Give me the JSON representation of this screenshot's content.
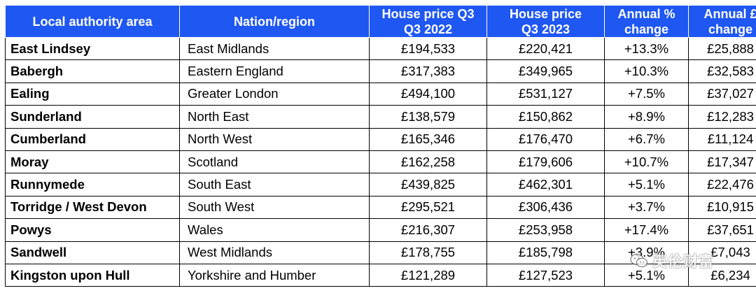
{
  "table": {
    "headers": [
      "Local authority area",
      "Nation/region",
      "House price Q3 Q3 2022",
      "House price Q3 2023",
      "Annual % change",
      "Annual £ change"
    ],
    "header_lines": [
      [
        "Local authority area"
      ],
      [
        "Nation/region"
      ],
      [
        "House price Q3",
        "Q3 2022"
      ],
      [
        "House price",
        "Q3 2023"
      ],
      [
        "Annual %",
        "change"
      ],
      [
        "Annual £",
        "change"
      ]
    ],
    "rows": [
      [
        "East Lindsey",
        "East Midlands",
        "£194,533",
        "£220,421",
        "+13.3%",
        "£25,888"
      ],
      [
        "Babergh",
        "Eastern England",
        "£317,383",
        "£349,965",
        "+10.3%",
        "£32,583"
      ],
      [
        "Ealing",
        "Greater London",
        "£494,100",
        "£531,127",
        "+7.5%",
        "£37,027"
      ],
      [
        "Sunderland",
        "North East",
        "£138,579",
        "£150,862",
        "+8.9%",
        "£12,283"
      ],
      [
        "Cumberland",
        "North West",
        "£165,346",
        "£176,470",
        "+6.7%",
        "£11,124"
      ],
      [
        "Moray",
        "Scotland",
        "£162,258",
        "£179,606",
        "+10.7%",
        "£17,347"
      ],
      [
        "Runnymede",
        "South East",
        "£439,825",
        "£462,301",
        "+5.1%",
        "£22,476"
      ],
      [
        "Torridge / West Devon",
        "South West",
        "£295,521",
        "£306,436",
        "+3.7%",
        "£10,915"
      ],
      [
        "Powys",
        "Wales",
        "£216,307",
        "£253,958",
        "+17.4%",
        "£37,651"
      ],
      [
        "Sandwell",
        "West Midlands",
        "£178,755",
        "£185,798",
        "+3.9%",
        "£7,043"
      ],
      [
        "Kingston upon Hull",
        "Yorkshire and Humber",
        "£121,289",
        "£127,523",
        "+5.1%",
        "£6,234"
      ]
    ]
  },
  "watermark": {
    "text": "英伦财富",
    "icon": "wechat-icon"
  },
  "colors": {
    "header_bg": "#1f57f2",
    "header_text": "#ffffff",
    "border": "#000000"
  }
}
